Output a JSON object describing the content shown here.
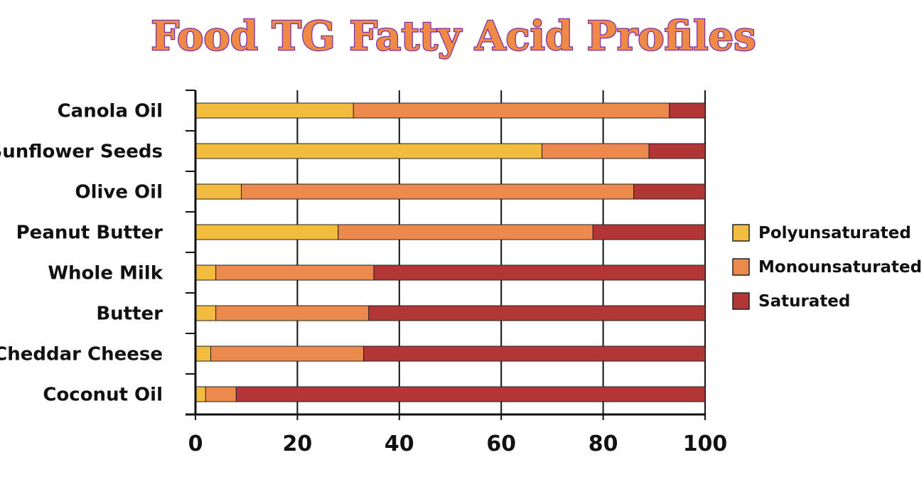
{
  "chart_data": {
    "type": "bar",
    "orientation": "horizontal",
    "stacked": true,
    "title": "Food TG Fatty Acid Profiles",
    "categories": [
      "Canola Oil",
      "Sunflower Seeds",
      "Olive Oil",
      "Peanut Butter",
      "Whole Milk",
      "Butter",
      "Cheddar Cheese",
      "Coconut Oil"
    ],
    "series": [
      {
        "name": "Polyunsaturated",
        "color": "#f2bd3e",
        "values": [
          31,
          68,
          9,
          28,
          4,
          4,
          3,
          2
        ]
      },
      {
        "name": "Monounsaturated",
        "color": "#eb8a4c",
        "values": [
          62,
          21,
          77,
          50,
          31,
          30,
          30,
          6
        ]
      },
      {
        "name": "Saturated",
        "color": "#b23636",
        "values": [
          7,
          11,
          14,
          22,
          65,
          66,
          67,
          92
        ]
      }
    ],
    "x_ticks": [
      "0",
      "20",
      "40",
      "60",
      "80",
      "100"
    ],
    "xlim": [
      0,
      100
    ],
    "grid": true,
    "legend_position": "right"
  }
}
